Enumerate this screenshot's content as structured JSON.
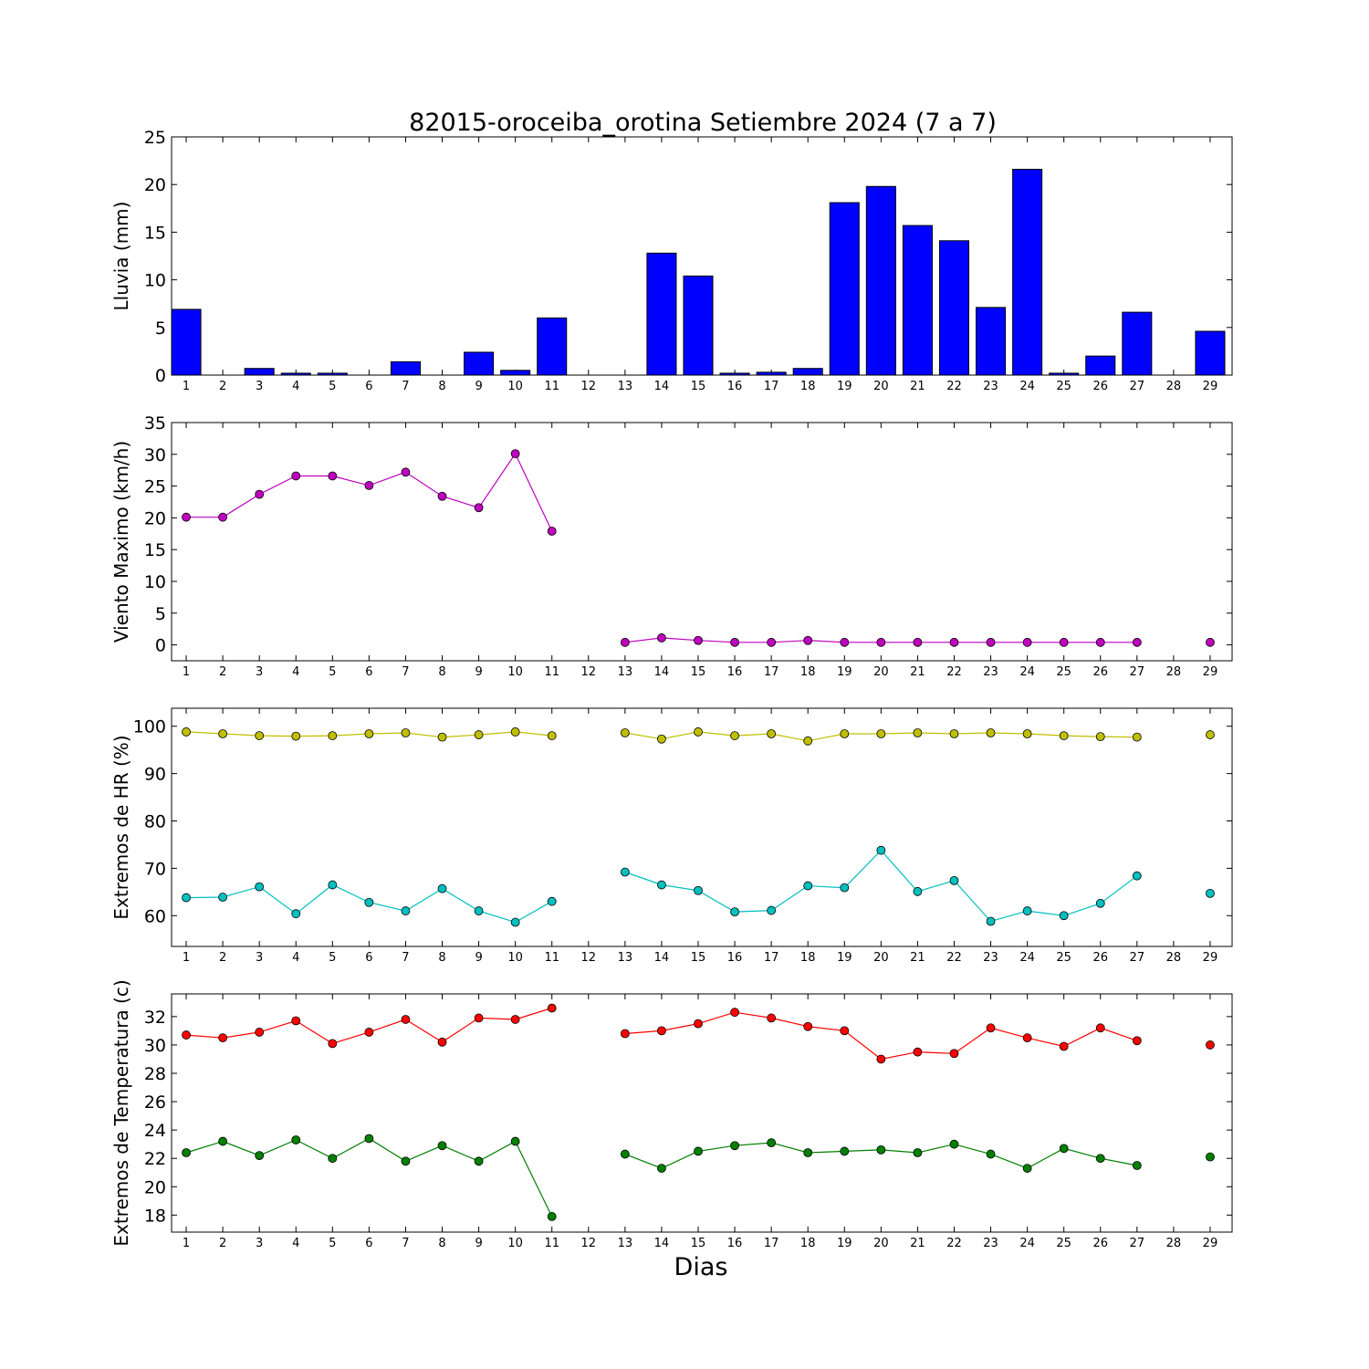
{
  "title": "82015-oroceiba_orotina Setiembre 2024  (7 a 7)",
  "xlabel": "Dias",
  "chart_data": [
    {
      "type": "bar",
      "ylabel": "Lluvia (mm)",
      "ylim": [
        0,
        25
      ],
      "yticks": [
        0,
        5,
        10,
        15,
        20,
        25
      ],
      "xlim": [
        0.6,
        29.6
      ],
      "x": [
        1,
        2,
        3,
        4,
        5,
        6,
        7,
        8,
        9,
        10,
        11,
        12,
        13,
        14,
        15,
        16,
        17,
        18,
        19,
        20,
        21,
        22,
        23,
        24,
        25,
        26,
        27,
        28,
        29
      ],
      "series": [
        {
          "color": "#0000ff",
          "values": [
            6.9,
            0,
            0.7,
            0.2,
            0.2,
            0,
            1.4,
            0,
            2.4,
            0.5,
            6.0,
            0,
            0,
            12.8,
            10.4,
            0.2,
            0.3,
            0.7,
            18.1,
            19.8,
            15.7,
            14.1,
            7.1,
            21.6,
            0.2,
            2.0,
            6.6,
            0,
            4.6
          ]
        }
      ]
    },
    {
      "type": "line",
      "ylabel": "Viento Maximo (km/h)",
      "ylim": [
        -2.5,
        35
      ],
      "yticks": [
        0,
        5,
        10,
        15,
        20,
        25,
        30,
        35
      ],
      "xlim": [
        0.6,
        29.6
      ],
      "x": [
        1,
        2,
        3,
        4,
        5,
        6,
        7,
        8,
        9,
        10,
        11,
        12,
        13,
        14,
        15,
        16,
        17,
        18,
        19,
        20,
        21,
        22,
        23,
        24,
        25,
        26,
        27,
        28,
        29
      ],
      "series": [
        {
          "color": "#bf00bf",
          "values": [
            20.1,
            20.1,
            23.7,
            26.6,
            26.6,
            25.1,
            27.2,
            23.4,
            21.6,
            30.1,
            17.9,
            null,
            0.4,
            1.1,
            0.7,
            0.4,
            0.4,
            0.7,
            0.4,
            0.4,
            0.4,
            0.4,
            0.4,
            0.4,
            0.4,
            0.4,
            0.4,
            null,
            0.4
          ]
        }
      ]
    },
    {
      "type": "line",
      "ylabel": "Extremos de HR (%)",
      "ylim": [
        53.5,
        103.8
      ],
      "yticks": [
        60,
        70,
        80,
        90,
        100
      ],
      "xlim": [
        0.6,
        29.6
      ],
      "x": [
        1,
        2,
        3,
        4,
        5,
        6,
        7,
        8,
        9,
        10,
        11,
        12,
        13,
        14,
        15,
        16,
        17,
        18,
        19,
        20,
        21,
        22,
        23,
        24,
        25,
        26,
        27,
        28,
        29
      ],
      "series": [
        {
          "color": "#bfbf00",
          "values": [
            98.8,
            98.4,
            98.0,
            97.9,
            98.0,
            98.4,
            98.6,
            97.7,
            98.2,
            98.8,
            98.0,
            null,
            98.6,
            97.3,
            98.8,
            98.0,
            98.4,
            96.9,
            98.4,
            98.4,
            98.6,
            98.4,
            98.6,
            98.4,
            98.0,
            97.8,
            97.7,
            null,
            98.2
          ]
        },
        {
          "color": "#00bfbf",
          "values": [
            63.8,
            63.9,
            66.1,
            60.4,
            66.5,
            62.8,
            61.0,
            65.7,
            61.0,
            58.6,
            63.0,
            null,
            69.2,
            66.5,
            65.3,
            60.8,
            61.1,
            66.3,
            65.9,
            73.8,
            65.1,
            67.4,
            58.8,
            61.0,
            60.0,
            62.6,
            68.4,
            null,
            64.7
          ]
        }
      ]
    },
    {
      "type": "line",
      "ylabel": "Extremos de Temperatura (c)",
      "ylim": [
        16.8,
        33.6
      ],
      "yticks": [
        18,
        20,
        22,
        24,
        26,
        28,
        30,
        32
      ],
      "xlim": [
        0.6,
        29.6
      ],
      "x": [
        1,
        2,
        3,
        4,
        5,
        6,
        7,
        8,
        9,
        10,
        11,
        12,
        13,
        14,
        15,
        16,
        17,
        18,
        19,
        20,
        21,
        22,
        23,
        24,
        25,
        26,
        27,
        28,
        29
      ],
      "series": [
        {
          "color": "#ff0000",
          "values": [
            30.7,
            30.5,
            30.9,
            31.7,
            30.1,
            30.9,
            31.8,
            30.2,
            31.9,
            31.8,
            32.6,
            null,
            30.8,
            31.0,
            31.5,
            32.3,
            31.9,
            31.3,
            31.0,
            29.0,
            29.5,
            29.4,
            31.2,
            30.5,
            29.9,
            31.2,
            30.3,
            null,
            30.0
          ]
        },
        {
          "color": "#007f00",
          "values": [
            22.4,
            23.2,
            22.2,
            23.3,
            22.0,
            23.4,
            21.8,
            22.9,
            21.8,
            23.2,
            17.9,
            null,
            22.3,
            21.3,
            22.5,
            22.9,
            23.1,
            22.4,
            22.5,
            22.6,
            22.4,
            23.0,
            22.3,
            21.3,
            22.7,
            22.0,
            21.5,
            null,
            22.1
          ]
        }
      ]
    }
  ]
}
